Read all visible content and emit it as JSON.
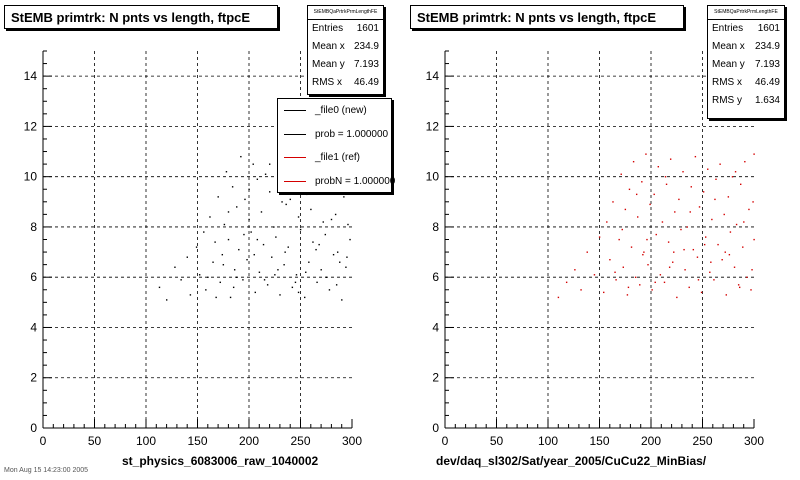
{
  "panels": [
    {
      "id": "left",
      "title": "StEMB primtrk: N pnts vs length, ftpcE",
      "stats": {
        "header": "StEMBQaPrtrkPrmLengthFE",
        "rows": [
          {
            "k": "Entries",
            "v": "1601"
          },
          {
            "k": "Mean x",
            "v": "234.9"
          },
          {
            "k": "Mean y",
            "v": "7.193"
          },
          {
            "k": "RMS x",
            "v": "46.49"
          }
        ]
      },
      "legend": [
        {
          "label": "_file0 (new)",
          "color": "#000000"
        },
        {
          "label": "prob = 1.000000",
          "color": "#000000"
        },
        {
          "label": "_file1 (ref)",
          "color": "#d40000"
        },
        {
          "label": "probN = 1.000000",
          "color": "#d40000"
        }
      ],
      "footer": "st_physics_6083006_raw_1040002",
      "note": "Mon Aug 15 14:23:00 2005"
    },
    {
      "id": "right",
      "title": "StEMB primtrk: N pnts vs length, ftpcE",
      "stats": {
        "header": "StEMBQaPrtrkPrmLengthFE",
        "rows": [
          {
            "k": "Entries",
            "v": "1601"
          },
          {
            "k": "Mean x",
            "v": "234.9"
          },
          {
            "k": "Mean y",
            "v": "7.193"
          },
          {
            "k": "RMS x",
            "v": "46.49"
          },
          {
            "k": "RMS y",
            "v": "1.634"
          }
        ]
      },
      "footer": "dev/daq_sl302/Sat/year_2005/CuCu22_MinBias/"
    }
  ],
  "chart_data": [
    {
      "type": "scatter",
      "title": "StEMB primtrk: N pnts vs length, ftpcE",
      "xlim": [
        0,
        300
      ],
      "ylim": [
        0,
        15
      ],
      "xticks": [
        0,
        50,
        100,
        150,
        200,
        250,
        300
      ],
      "yticks": [
        0,
        2,
        4,
        6,
        8,
        10,
        12,
        14
      ],
      "grid": true,
      "marker_color": "#000000",
      "entries": 1601,
      "points": [
        [
          113,
          5.6
        ],
        [
          120,
          5.1
        ],
        [
          128,
          6.4
        ],
        [
          134,
          5.9
        ],
        [
          140,
          6.8
        ],
        [
          143,
          5.3
        ],
        [
          149,
          7.2
        ],
        [
          152,
          6.1
        ],
        [
          156,
          7.8
        ],
        [
          158,
          5.5
        ],
        [
          162,
          8.4
        ],
        [
          165,
          6.6
        ],
        [
          167,
          7.4
        ],
        [
          170,
          9.2
        ],
        [
          172,
          5.8
        ],
        [
          174,
          6.9
        ],
        [
          176,
          8.1
        ],
        [
          178,
          10.2
        ],
        [
          180,
          7.5
        ],
        [
          182,
          5.2
        ],
        [
          184,
          9.6
        ],
        [
          186,
          6.3
        ],
        [
          188,
          8.8
        ],
        [
          190,
          7.1
        ],
        [
          192,
          10.8
        ],
        [
          194,
          5.9
        ],
        [
          196,
          9.1
        ],
        [
          198,
          6.7
        ],
        [
          200,
          8.3
        ],
        [
          202,
          7.8
        ],
        [
          204,
          10.5
        ],
        [
          206,
          5.4
        ],
        [
          208,
          9.9
        ],
        [
          210,
          6.2
        ],
        [
          212,
          8.6
        ],
        [
          214,
          7.3
        ],
        [
          216,
          10.1
        ],
        [
          218,
          5.7
        ],
        [
          220,
          9.4
        ],
        [
          222,
          6.8
        ],
        [
          224,
          8.0
        ],
        [
          226,
          7.6
        ],
        [
          228,
          10.7
        ],
        [
          230,
          5.3
        ],
        [
          232,
          9.0
        ],
        [
          234,
          6.5
        ],
        [
          236,
          8.9
        ],
        [
          238,
          7.2
        ],
        [
          240,
          10.3
        ],
        [
          242,
          5.6
        ],
        [
          244,
          9.7
        ],
        [
          246,
          6.1
        ],
        [
          248,
          8.4
        ],
        [
          250,
          7.9
        ],
        [
          252,
          10.9
        ],
        [
          254,
          5.2
        ],
        [
          256,
          9.3
        ],
        [
          258,
          6.6
        ],
        [
          260,
          8.7
        ],
        [
          262,
          7.4
        ],
        [
          264,
          10.0
        ],
        [
          266,
          5.8
        ],
        [
          268,
          9.5
        ],
        [
          270,
          6.3
        ],
        [
          272,
          8.2
        ],
        [
          274,
          7.7
        ],
        [
          276,
          10.6
        ],
        [
          278,
          5.5
        ],
        [
          280,
          9.8
        ],
        [
          282,
          6.9
        ],
        [
          284,
          8.5
        ],
        [
          286,
          7.0
        ],
        [
          288,
          10.4
        ],
        [
          290,
          5.1
        ],
        [
          292,
          9.2
        ],
        [
          294,
          6.4
        ],
        [
          296,
          8.1
        ],
        [
          298,
          7.5
        ],
        [
          299,
          10.8
        ],
        [
          160,
          6.0
        ],
        [
          175,
          6.5
        ],
        [
          185,
          5.6
        ],
        [
          195,
          7.7
        ],
        [
          205,
          6.9
        ],
        [
          215,
          5.9
        ],
        [
          225,
          6.1
        ],
        [
          235,
          7.0
        ],
        [
          245,
          5.8
        ],
        [
          255,
          6.2
        ],
        [
          265,
          7.1
        ],
        [
          275,
          6.0
        ],
        [
          285,
          5.7
        ],
        [
          295,
          6.8
        ],
        [
          168,
          5.2
        ],
        [
          188,
          6.0
        ],
        [
          208,
          7.5
        ],
        [
          228,
          6.3
        ],
        [
          248,
          5.4
        ],
        [
          268,
          7.3
        ],
        [
          288,
          6.6
        ],
        [
          180,
          8.6
        ],
        [
          200,
          9.5
        ],
        [
          220,
          10.5
        ],
        [
          240,
          9.1
        ],
        [
          260,
          9.9
        ],
        [
          280,
          8.3
        ],
        [
          300,
          9.6
        ]
      ]
    },
    {
      "type": "scatter",
      "title": "StEMB primtrk: N pnts vs length, ftpcE",
      "xlim": [
        0,
        300
      ],
      "ylim": [
        0,
        15
      ],
      "xticks": [
        0,
        50,
        100,
        150,
        200,
        250,
        300
      ],
      "yticks": [
        0,
        2,
        4,
        6,
        8,
        10,
        12,
        14
      ],
      "grid": true,
      "marker_color": "#d40000",
      "entries": 1601,
      "points": [
        [
          110,
          5.2
        ],
        [
          118,
          5.8
        ],
        [
          126,
          6.3
        ],
        [
          132,
          5.5
        ],
        [
          138,
          7.0
        ],
        [
          145,
          6.1
        ],
        [
          150,
          7.6
        ],
        [
          154,
          5.4
        ],
        [
          157,
          8.2
        ],
        [
          160,
          6.7
        ],
        [
          163,
          9.0
        ],
        [
          166,
          5.9
        ],
        [
          169,
          7.5
        ],
        [
          171,
          10.1
        ],
        [
          173,
          6.4
        ],
        [
          175,
          8.7
        ],
        [
          177,
          5.3
        ],
        [
          179,
          9.5
        ],
        [
          181,
          7.2
        ],
        [
          183,
          10.6
        ],
        [
          185,
          6.0
        ],
        [
          187,
          8.4
        ],
        [
          189,
          5.7
        ],
        [
          191,
          9.8
        ],
        [
          193,
          7.0
        ],
        [
          195,
          10.9
        ],
        [
          197,
          6.5
        ],
        [
          199,
          8.9
        ],
        [
          201,
          5.5
        ],
        [
          203,
          9.3
        ],
        [
          205,
          7.7
        ],
        [
          207,
          10.4
        ],
        [
          209,
          6.1
        ],
        [
          211,
          8.2
        ],
        [
          213,
          5.8
        ],
        [
          215,
          9.7
        ],
        [
          217,
          7.4
        ],
        [
          219,
          10.7
        ],
        [
          221,
          6.6
        ],
        [
          223,
          8.6
        ],
        [
          225,
          5.2
        ],
        [
          227,
          9.1
        ],
        [
          229,
          7.9
        ],
        [
          231,
          10.2
        ],
        [
          233,
          6.3
        ],
        [
          235,
          8.0
        ],
        [
          237,
          5.6
        ],
        [
          239,
          9.6
        ],
        [
          241,
          7.1
        ],
        [
          243,
          10.8
        ],
        [
          245,
          6.8
        ],
        [
          247,
          8.8
        ],
        [
          249,
          5.4
        ],
        [
          251,
          9.4
        ],
        [
          253,
          7.6
        ],
        [
          255,
          10.3
        ],
        [
          257,
          6.2
        ],
        [
          259,
          8.3
        ],
        [
          261,
          5.9
        ],
        [
          263,
          9.9
        ],
        [
          265,
          7.3
        ],
        [
          267,
          10.5
        ],
        [
          269,
          6.7
        ],
        [
          271,
          8.5
        ],
        [
          273,
          5.3
        ],
        [
          275,
          9.2
        ],
        [
          277,
          7.8
        ],
        [
          279,
          10.0
        ],
        [
          281,
          6.4
        ],
        [
          283,
          8.1
        ],
        [
          285,
          5.7
        ],
        [
          287,
          9.7
        ],
        [
          289,
          7.2
        ],
        [
          291,
          10.6
        ],
        [
          293,
          6.0
        ],
        [
          295,
          8.7
        ],
        [
          297,
          5.5
        ],
        [
          299,
          9.0
        ],
        [
          300,
          7.5
        ],
        [
          165,
          6.2
        ],
        [
          178,
          5.6
        ],
        [
          192,
          6.9
        ],
        [
          204,
          5.8
        ],
        [
          218,
          6.4
        ],
        [
          232,
          7.1
        ],
        [
          246,
          5.9
        ],
        [
          258,
          6.6
        ],
        [
          272,
          7.0
        ],
        [
          286,
          5.6
        ],
        [
          298,
          6.3
        ],
        [
          172,
          7.9
        ],
        [
          196,
          7.5
        ],
        [
          222,
          7.0
        ],
        [
          252,
          7.3
        ],
        [
          276,
          6.9
        ],
        [
          290,
          8.2
        ],
        [
          186,
          9.3
        ],
        [
          214,
          10.0
        ],
        [
          238,
          8.6
        ],
        [
          262,
          9.1
        ],
        [
          282,
          10.2
        ],
        [
          300,
          10.9
        ]
      ]
    }
  ]
}
